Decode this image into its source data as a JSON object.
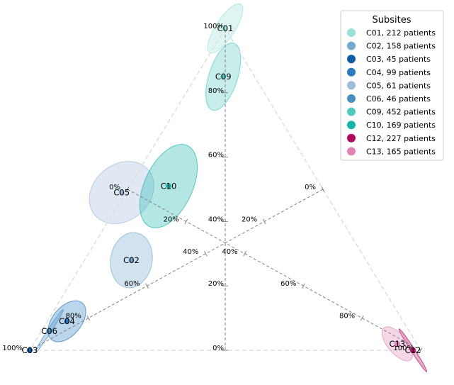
{
  "chart_data": {
    "type": "scatter",
    "projection": "ternary",
    "legend": {
      "title": "Subsites",
      "placement": "top-right"
    },
    "grid": false,
    "axis_ticks": [
      "0%",
      "20%",
      "40%",
      "60%",
      "80%",
      "100%"
    ],
    "series": [
      {
        "name": "C01, 212 patients",
        "code": "C01",
        "a": 1.0,
        "b": 0.0,
        "color": "#99dfdb",
        "ellipse": {
          "sa": 0.09,
          "sb": 0.03,
          "angle": -57
        }
      },
      {
        "name": "C02, 158 patients",
        "code": "C02",
        "a": 0.28,
        "b": 0.6,
        "color": "#74a9cf",
        "ellipse": {
          "sa": 0.065,
          "sb": 0.087,
          "angle": 10
        }
      },
      {
        "name": "C03, 45 patients",
        "code": "C03",
        "a": 0.0,
        "b": 1.0,
        "color": "#0c5da5",
        "ellipse": null
      },
      {
        "name": "C04, 99 patients",
        "code": "C04",
        "a": 0.09,
        "b": 0.86,
        "color": "#2b7bbd",
        "ellipse": {
          "sa": 0.075,
          "sb": 0.045,
          "angle": -50
        }
      },
      {
        "name": "C05, 61 patients",
        "code": "C05",
        "a": 0.49,
        "b": 0.52,
        "color": "#9ebcda",
        "ellipse": {
          "sa": 0.11,
          "sb": 0.088,
          "angle": -40
        }
      },
      {
        "name": "C06, 46 patients",
        "code": "C06",
        "a": 0.06,
        "b": 0.92,
        "color": "#4a8fc0",
        "ellipse": {
          "sa": 0.08,
          "sb": 0.006,
          "angle": -57
        }
      },
      {
        "name": "C09, 452 patients",
        "code": "C09",
        "a": 0.85,
        "b": 0.08,
        "color": "#52cac0",
        "ellipse": {
          "sa": 0.11,
          "sb": 0.045,
          "angle": -72
        }
      },
      {
        "name": "C10, 169 patients",
        "code": "C10",
        "a": 0.51,
        "b": 0.39,
        "color": "#17b3ac",
        "ellipse": {
          "sa": 0.14,
          "sb": 0.075,
          "angle": -65
        }
      },
      {
        "name": "C12, 227 patients",
        "code": "C12",
        "a": 0.0,
        "b": 0.02,
        "color": "#b0085f",
        "ellipse": {
          "sa": 0.08,
          "sb": 0.006,
          "angle": 57
        }
      },
      {
        "name": "C13, 165 patients",
        "code": "C13",
        "a": 0.02,
        "b": 0.05,
        "color": "#df85b8",
        "ellipse": {
          "sa": 0.065,
          "sb": 0.03,
          "angle": 50
        }
      }
    ]
  }
}
